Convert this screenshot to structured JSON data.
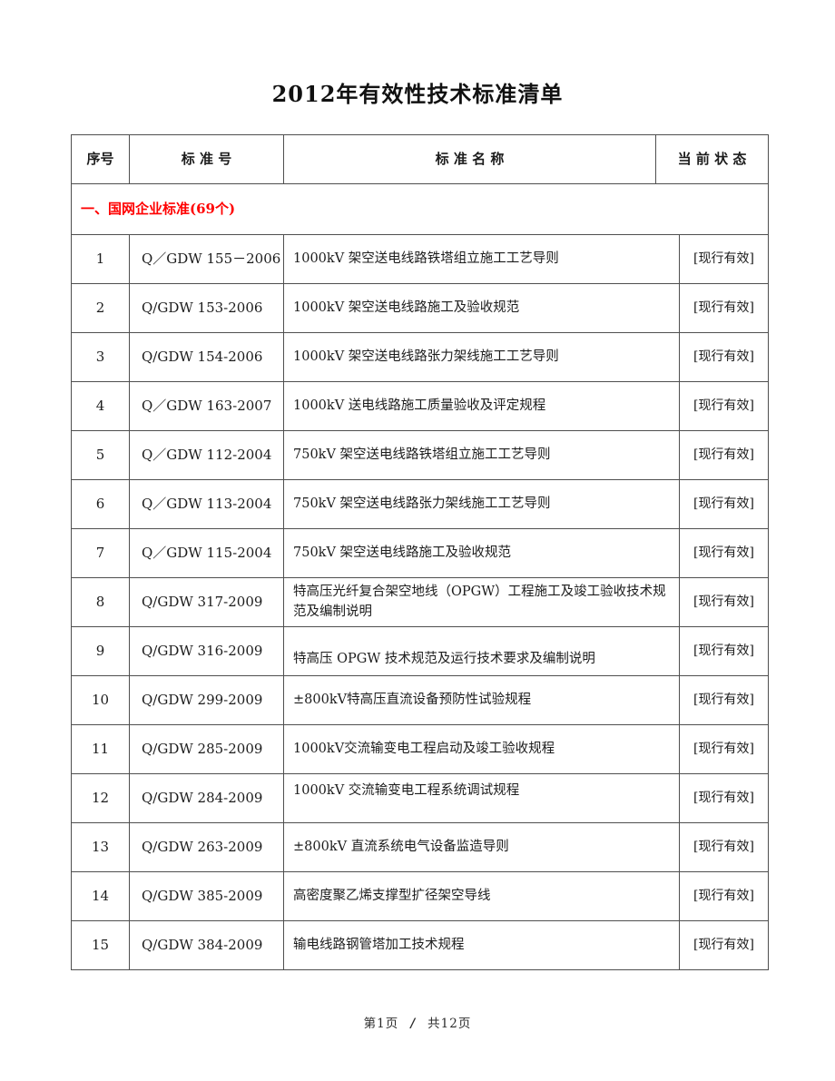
{
  "document": {
    "title": "2012年有效性技术标准清单",
    "footer": {
      "current_page": "第1页",
      "separator": "/",
      "total_pages": "共12页"
    }
  },
  "table": {
    "headers": {
      "index": "序号",
      "number": "标 准 号",
      "name": "标 准 名 称",
      "status": "当 前 状 态"
    },
    "section_header": {
      "label": "一、国网企业标准(69个)",
      "color": "#ff0000"
    },
    "rows": [
      {
        "index": "1",
        "number": "Q／GDW 155－2006",
        "name": "1000kV 架空送电线路铁塔组立施工工艺导则",
        "status": "[现行有效]"
      },
      {
        "index": "2",
        "number": "Q/GDW 153-2006",
        "name": "1000kV 架空送电线路施工及验收规范",
        "status": "[现行有效]"
      },
      {
        "index": "3",
        "number": "Q/GDW 154-2006",
        "name": "1000kV 架空送电线路张力架线施工工艺导则",
        "status": "[现行有效]"
      },
      {
        "index": "4",
        "number": "Q／GDW 163-2007",
        "name": "1000kV 送电线路施工质量验收及评定规程",
        "status": "[现行有效]"
      },
      {
        "index": "5",
        "number": "Q／GDW 112-2004",
        "name": "750kV 架空送电线路铁塔组立施工工艺导则",
        "status": "[现行有效]"
      },
      {
        "index": "6",
        "number": "Q／GDW 113-2004",
        "name": "750kV 架空送电线路张力架线施工工艺导则",
        "status": "[现行有效]"
      },
      {
        "index": "7",
        "number": "Q／GDW 115-2004",
        "name": "750kV 架空送电线路施工及验收规范",
        "status": "[现行有效]"
      },
      {
        "index": "8",
        "number": "Q/GDW 317-2009",
        "name": "特高压光纤复合架空地线（OPGW）工程施工及竣工验收技术规范及编制说明",
        "status": "[现行有效]"
      },
      {
        "index": "9",
        "number": "Q/GDW 316-2009",
        "name": "特高压 OPGW 技术规范及运行技术要求及编制说明",
        "status": "[现行有效]"
      },
      {
        "index": "10",
        "number": "Q/GDW 299-2009",
        "name": "±800kV特高压直流设备预防性试验规程",
        "status": "[现行有效]"
      },
      {
        "index": "11",
        "number": "Q/GDW 285-2009",
        "name": "1000kV交流输变电工程启动及竣工验收规程",
        "status": "[现行有效]"
      },
      {
        "index": "12",
        "number": "Q/GDW 284-2009",
        "name": "1000kV 交流输变电工程系统调试规程",
        "status": "[现行有效]"
      },
      {
        "index": "13",
        "number": "Q/GDW 263-2009",
        "name": "±800kV 直流系统电气设备监造导则",
        "status": "[现行有效]"
      },
      {
        "index": "14",
        "number": "Q/GDW 385-2009",
        "name": "高密度聚乙烯支撑型扩径架空导线",
        "status": "[现行有效]"
      },
      {
        "index": "15",
        "number": "Q/GDW 384-2009",
        "name": "输电线路钢管塔加工技术规程",
        "status": "[现行有效]"
      }
    ]
  }
}
